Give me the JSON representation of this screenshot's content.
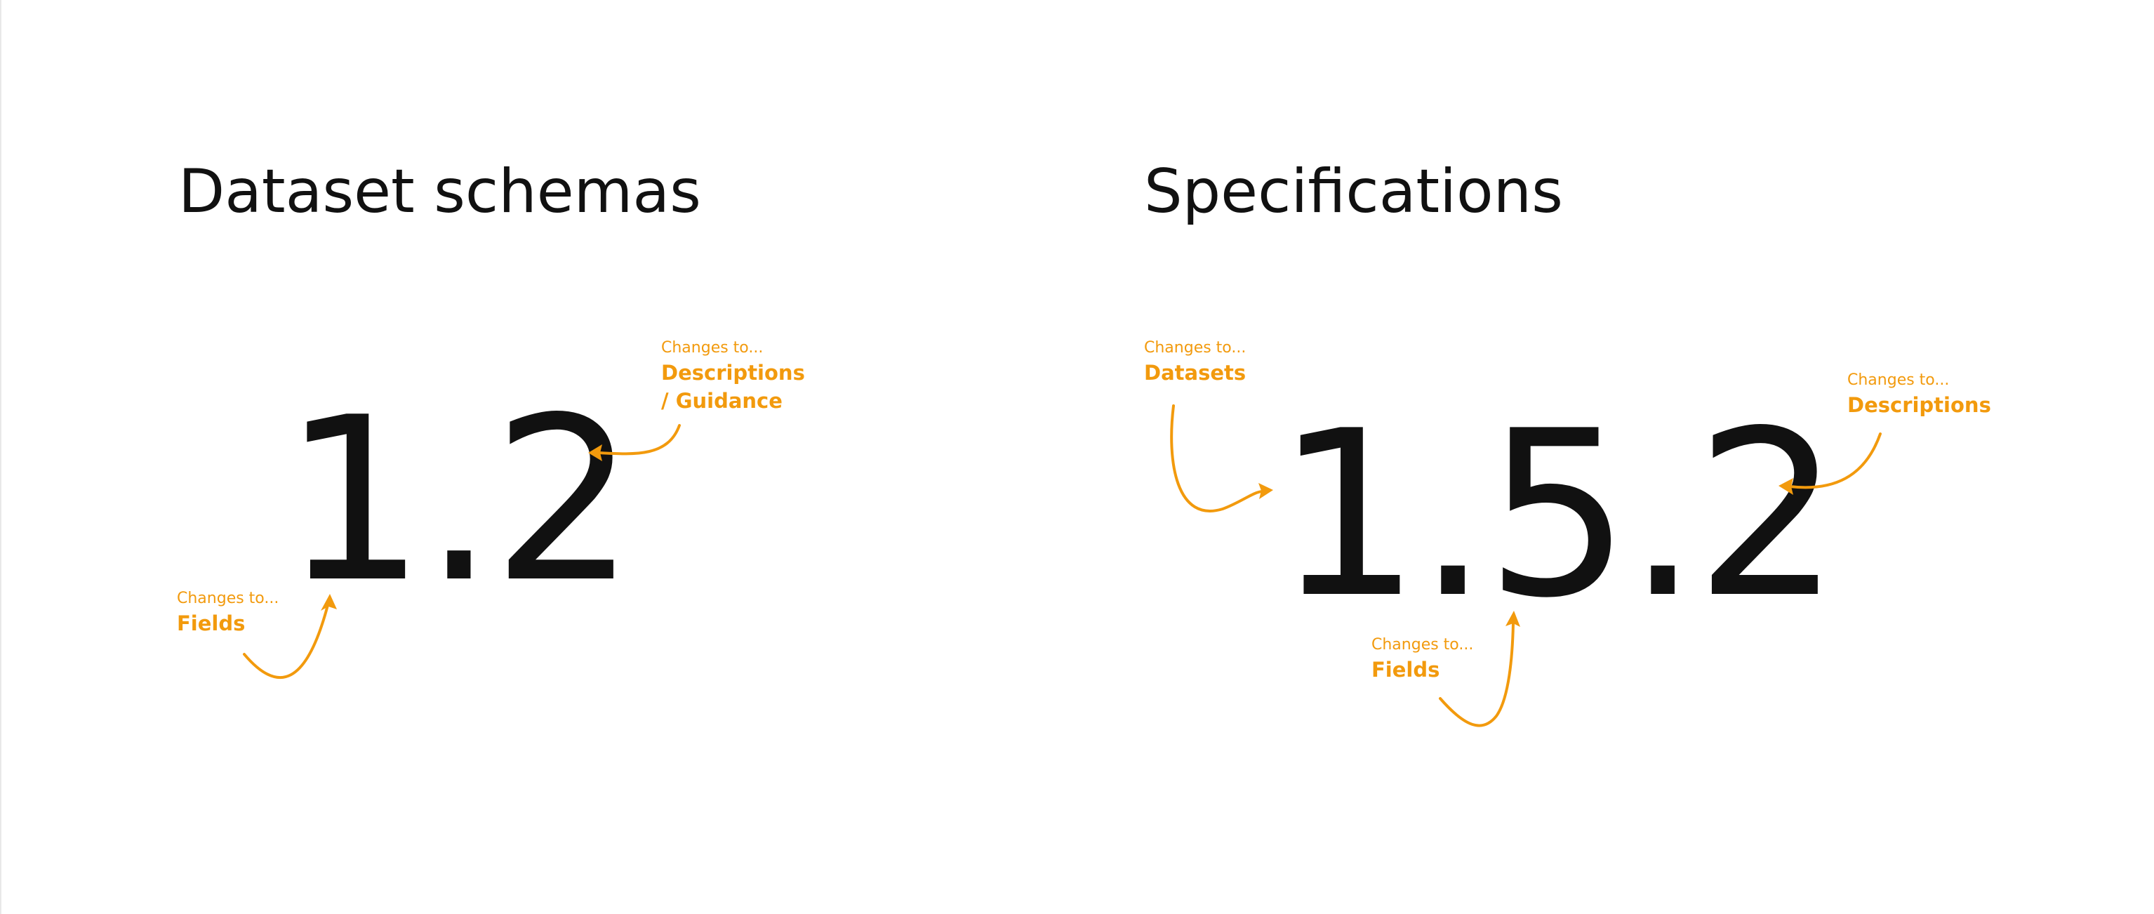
{
  "left": {
    "title": "Dataset schemas",
    "version": "1.2",
    "notes": {
      "major": {
        "prefix": "Changes to...",
        "label": "Fields"
      },
      "minor": {
        "prefix": "Changes to...",
        "label": "Descriptions / Guidance",
        "line1": "Descriptions",
        "line2": "/ Guidance"
      }
    }
  },
  "right": {
    "title": "Specifications",
    "version": "1.5.2",
    "notes": {
      "major": {
        "prefix": "Changes to...",
        "label": "Datasets"
      },
      "minor": {
        "prefix": "Changes to...",
        "label": "Fields"
      },
      "patch": {
        "prefix": "Changes to...",
        "label": "Descriptions"
      }
    }
  },
  "colors": {
    "accent": "#f29a0d",
    "text": "#111111",
    "background": "#ffffff"
  }
}
